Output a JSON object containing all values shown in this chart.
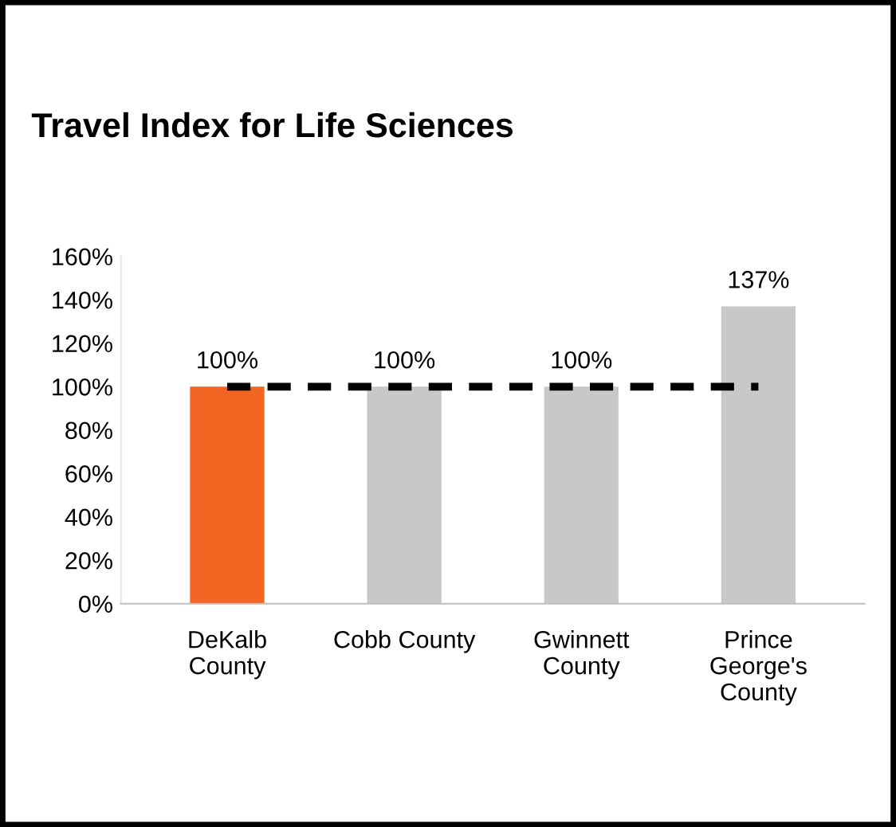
{
  "chart_data": {
    "type": "bar",
    "title": "Travel Index for Life Sciences",
    "categories": [
      "DeKalb\nCounty",
      "Cobb County",
      "Gwinnett\nCounty",
      "Prince\nGeorge's\nCounty"
    ],
    "series": [
      {
        "colors": [
          "#f26522",
          "#c8c8c8",
          "#c8c8c8",
          "#c8c8c8"
        ],
        "values": [
          100,
          100,
          100,
          137
        ],
        "value_labels": [
          "100%",
          "100%",
          "100%",
          "137%"
        ]
      },
      {
        "type": "line",
        "color": "#000000",
        "line_style": "dashed",
        "marker": "none",
        "values": [
          100,
          100,
          100,
          100
        ]
      }
    ],
    "ylim": [
      0,
      160
    ],
    "yticks": [
      {
        "value": 0,
        "label": "0%"
      },
      {
        "value": 20,
        "label": "20%"
      },
      {
        "value": 40,
        "label": "40%"
      },
      {
        "value": 60,
        "label": "60%"
      },
      {
        "value": 80,
        "label": "80%"
      },
      {
        "value": 100,
        "label": "100%"
      },
      {
        "value": 120,
        "label": "120%"
      },
      {
        "value": 140,
        "label": "140%"
      },
      {
        "value": 160,
        "label": "160%"
      }
    ],
    "grid": false,
    "legend": false
  }
}
